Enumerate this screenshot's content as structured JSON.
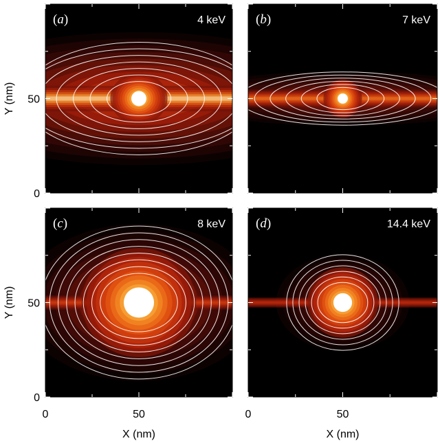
{
  "chart_data": [
    {
      "type": "heatmap",
      "panel": "(a)",
      "annotation": "4 keV",
      "xlabel": "",
      "ylabel": "Y (nm)",
      "xlim": [
        0,
        100
      ],
      "ylim": [
        0,
        100
      ],
      "x_ticks": [],
      "y_ticks": [
        "0",
        "50"
      ],
      "colormap": "black-red-orange-yellow-white",
      "center": [
        50,
        50
      ],
      "core": {
        "sigma_x": 9,
        "sigma_y": 8
      },
      "streak": {
        "sigma_y": 4.5,
        "amplitude": 0.85
      },
      "halo": {
        "sigma_x": 70,
        "sigma_y": 22,
        "amplitude": 0.55
      },
      "contours": 7
    },
    {
      "type": "heatmap",
      "panel": "(b)",
      "annotation": "7 keV",
      "xlabel": "",
      "ylabel": "",
      "xlim": [
        0,
        100
      ],
      "ylim": [
        0,
        100
      ],
      "x_ticks": [],
      "y_ticks": [],
      "colormap": "black-red-orange-yellow-white",
      "center": [
        50,
        50
      ],
      "core": {
        "sigma_x": 6,
        "sigma_y": 6
      },
      "streak": {
        "sigma_y": 3.2,
        "amplitude": 0.55
      },
      "halo": {
        "sigma_x": 55,
        "sigma_y": 9,
        "amplitude": 0.35
      },
      "contours": 6
    },
    {
      "type": "heatmap",
      "panel": "(c)",
      "annotation": "8 keV",
      "xlabel": "X (nm)",
      "ylabel": "Y (nm)",
      "xlim": [
        0,
        100
      ],
      "ylim": [
        0,
        100
      ],
      "x_ticks": [
        "0",
        "50"
      ],
      "y_ticks": [
        "0",
        "50"
      ],
      "colormap": "black-red-orange-yellow-white",
      "center": [
        50,
        50
      ],
      "core": {
        "sigma_x": 18,
        "sigma_y": 17
      },
      "streak": {
        "sigma_y": 2.5,
        "amplitude": 0.35
      },
      "halo": {
        "sigma_x": 40,
        "sigma_y": 26,
        "amplitude": 0.45
      },
      "contours": 8
    },
    {
      "type": "heatmap",
      "panel": "(d)",
      "annotation": "14.4 keV",
      "xlabel": "X (nm)",
      "ylabel": "",
      "xlim": [
        0,
        100
      ],
      "ylim": [
        0,
        100
      ],
      "x_ticks": [
        "0",
        "50"
      ],
      "y_ticks": [],
      "colormap": "black-red-orange-yellow-white",
      "center": [
        50,
        50
      ],
      "core": {
        "sigma_x": 11,
        "sigma_y": 11
      },
      "streak": {
        "sigma_y": 1.8,
        "amplitude": 0.25
      },
      "halo": {
        "sigma_x": 22,
        "sigma_y": 16,
        "amplitude": 0.3
      },
      "contours": 6
    }
  ]
}
